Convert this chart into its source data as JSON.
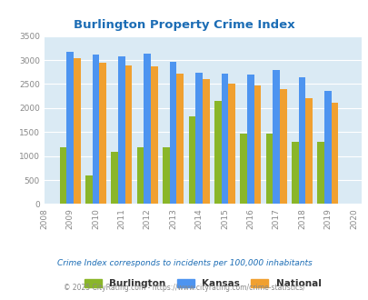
{
  "title": "Burlington Property Crime Index",
  "bar_years": [
    2009,
    2010,
    2011,
    2012,
    2013,
    2014,
    2015,
    2016,
    2017,
    2018,
    2019
  ],
  "burlington": [
    1190,
    590,
    1090,
    1185,
    1175,
    1820,
    2150,
    1475,
    1475,
    1300,
    1300
  ],
  "kansas": [
    3175,
    3120,
    3075,
    3140,
    2960,
    2740,
    2720,
    2690,
    2800,
    2640,
    2350
  ],
  "national": [
    3030,
    2950,
    2895,
    2860,
    2720,
    2600,
    2500,
    2475,
    2385,
    2200,
    2110
  ],
  "burlington_color": "#8ab629",
  "kansas_color": "#4d94f0",
  "national_color": "#f0a030",
  "bg_color": "#daeaf4",
  "ylim": [
    0,
    3500
  ],
  "yticks": [
    0,
    500,
    1000,
    1500,
    2000,
    2500,
    3000,
    3500
  ],
  "subtitle": "Crime Index corresponds to incidents per 100,000 inhabitants",
  "footer": "© 2025 CityRating.com - https://www.cityrating.com/crime-statistics/",
  "title_color": "#1c6db5",
  "subtitle_color": "#1c6db5",
  "footer_color": "#888888",
  "legend_label_color": "#333333"
}
